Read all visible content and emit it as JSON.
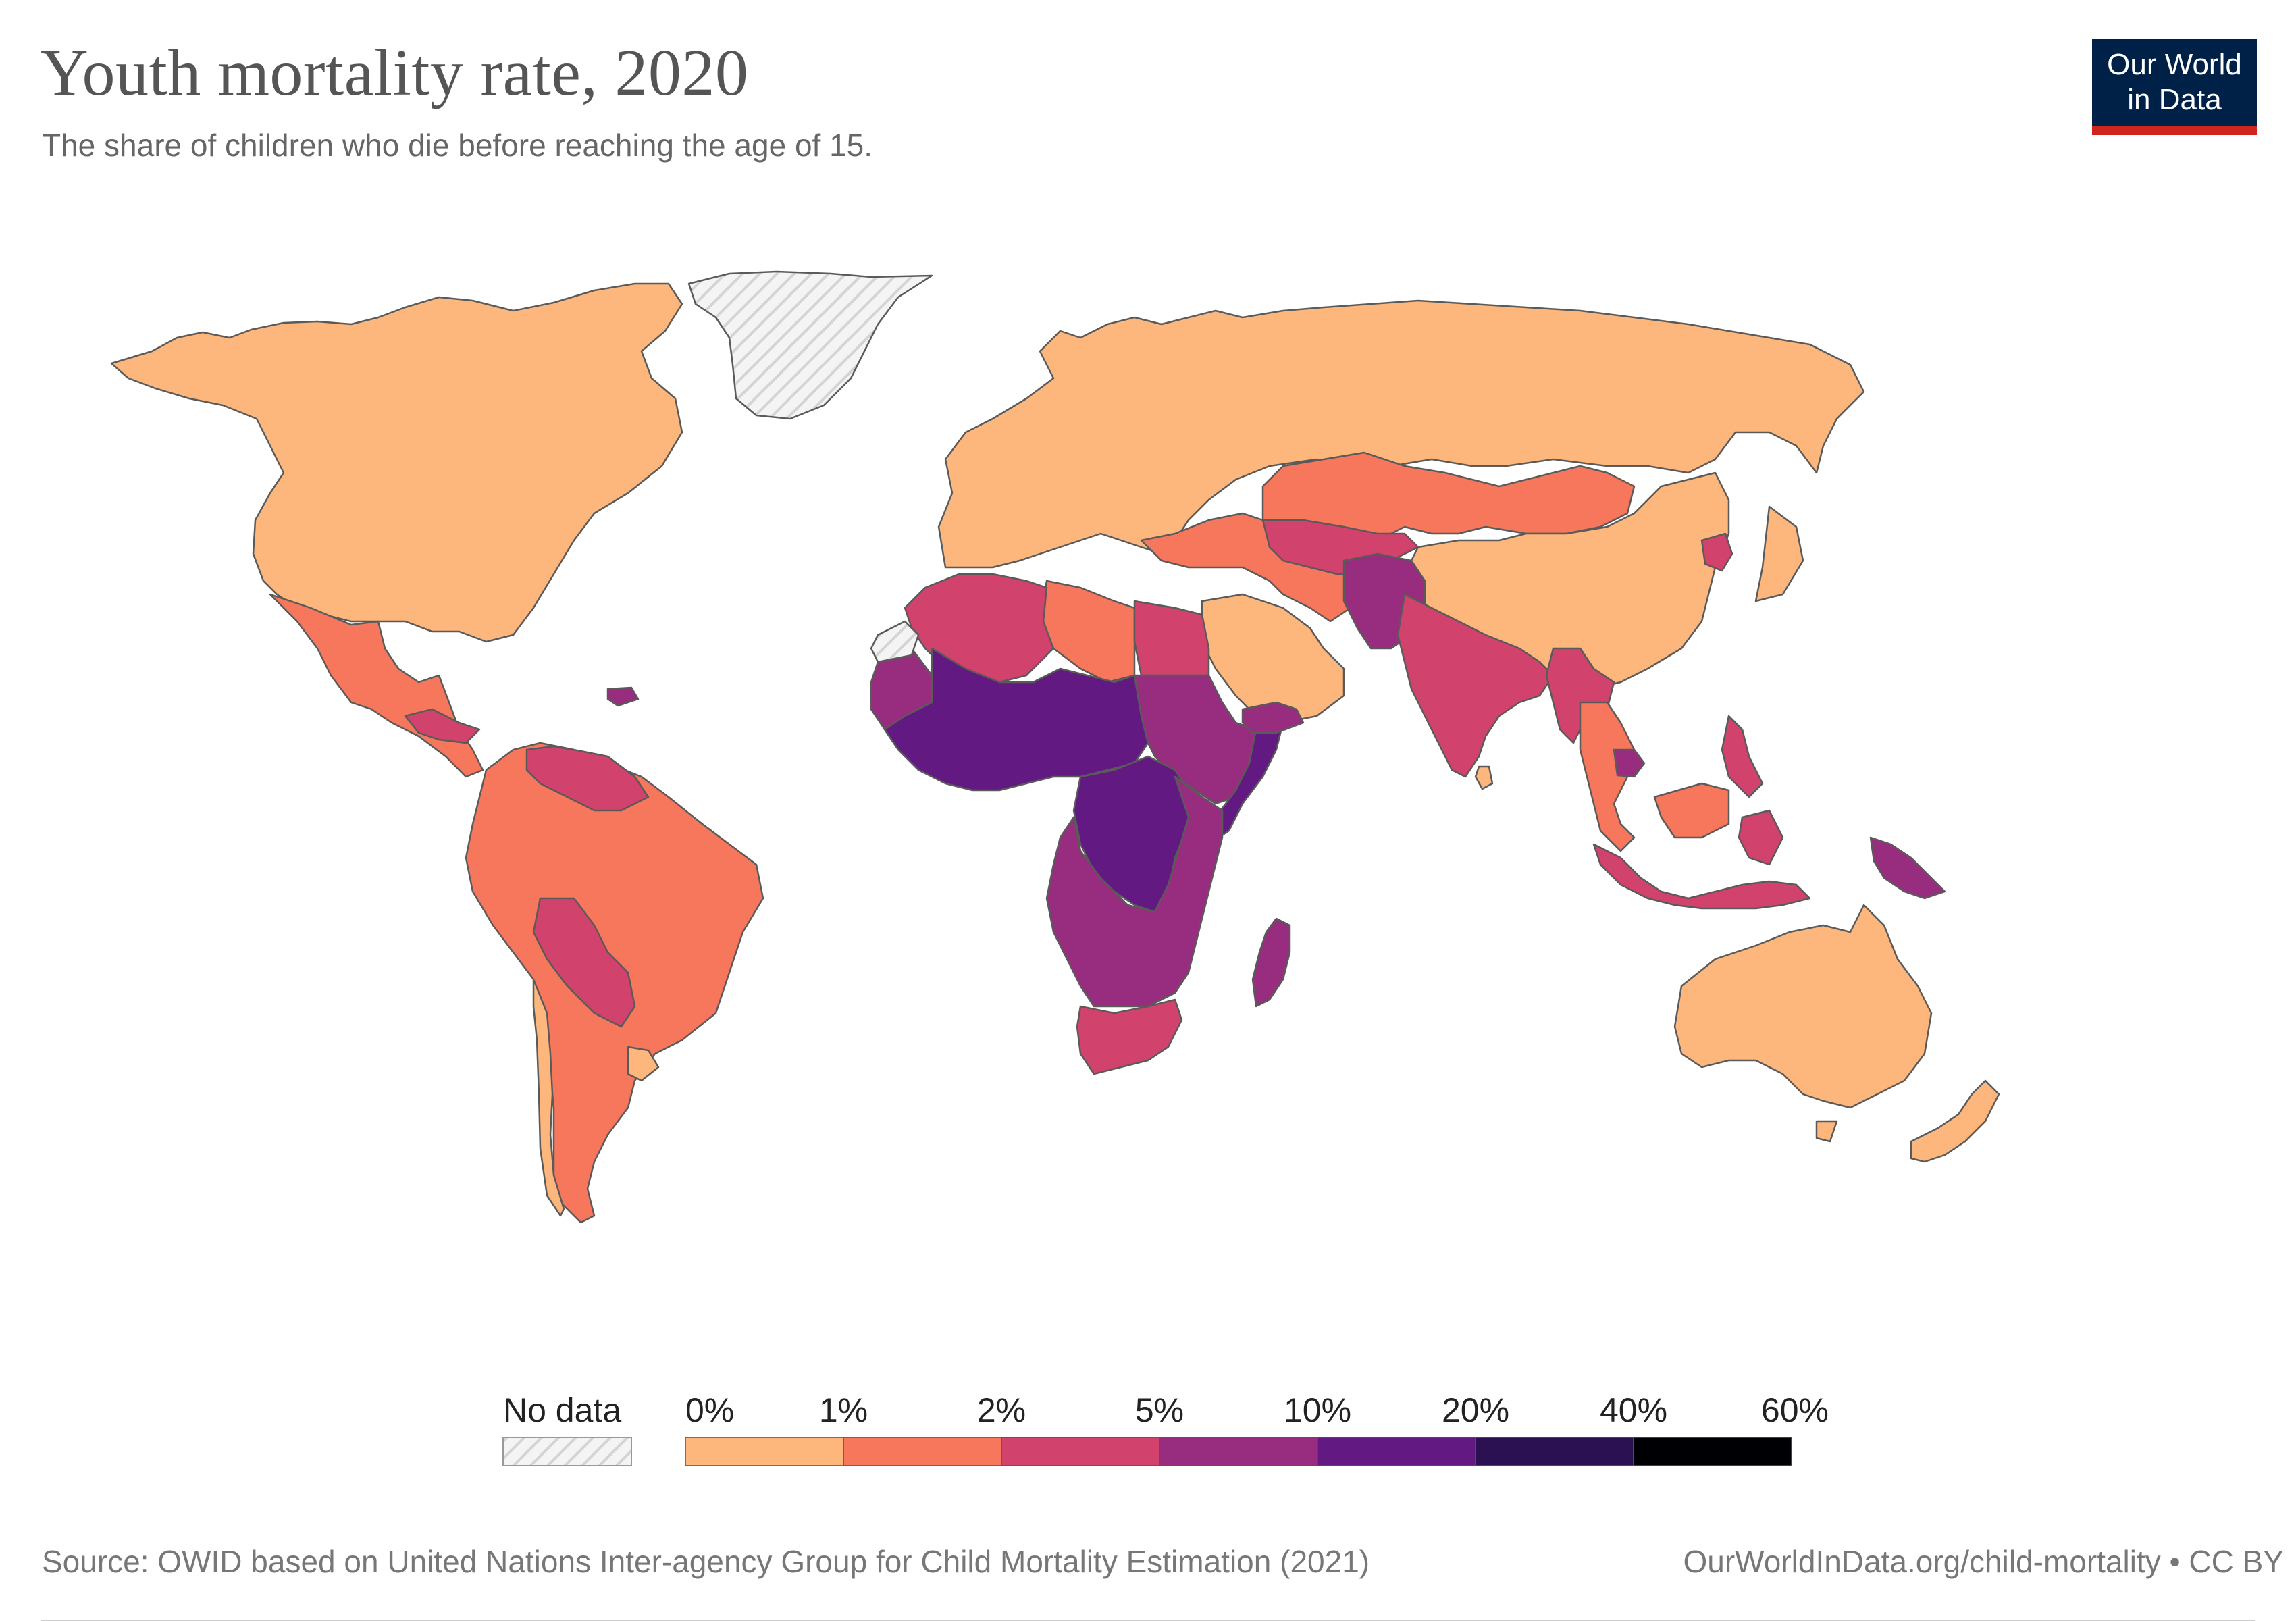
{
  "header": {
    "title": "Youth mortality rate, 2020",
    "subtitle": "The share of children who die before reaching the age of 15."
  },
  "logo": {
    "line1": "Our World",
    "line2": "in Data"
  },
  "legend": {
    "no_data_label": "No data",
    "bins": [
      {
        "label": "0%",
        "color": "#fdb67c"
      },
      {
        "label": "1%",
        "color": "#f6775b"
      },
      {
        "label": "2%",
        "color": "#d1426c"
      },
      {
        "label": "5%",
        "color": "#982d80"
      },
      {
        "label": "10%",
        "color": "#621a82"
      },
      {
        "label": "20%",
        "color": "#2b1052"
      },
      {
        "label": "40%",
        "color": "#000004"
      }
    ],
    "end_label": "60%"
  },
  "footer": {
    "source": "Source: OWID based on United Nations Inter-agency Group for Child Mortality Estimation (2021)",
    "link": "OurWorldInData.org/child-mortality • CC BY"
  },
  "map_data": {
    "colors": {
      "bin0": "#fdb67c",
      "bin1": "#f6775b",
      "bin2": "#d1426c",
      "bin3": "#982d80",
      "bin4": "#621a82",
      "no_data": "#f2f2f2",
      "border": "#5a5a5a"
    },
    "regions": [
      {
        "name": "North America",
        "bin": "bin0"
      },
      {
        "name": "Mexico & Central America",
        "bin": "bin1"
      },
      {
        "name": "Guatemala / Honduras",
        "bin": "bin2"
      },
      {
        "name": "Haiti",
        "bin": "bin3"
      },
      {
        "name": "Greenland",
        "bin": "no_data"
      },
      {
        "name": "Colombia / Ecuador / Peru / Brazil / Argentina",
        "bin": "bin1"
      },
      {
        "name": "Venezuela / Guyana",
        "bin": "bin2"
      },
      {
        "name": "Bolivia / Paraguay",
        "bin": "bin2"
      },
      {
        "name": "Chile / Uruguay",
        "bin": "bin0"
      },
      {
        "name": "Europe & Russia",
        "bin": "bin0"
      },
      {
        "name": "Turkey / Kazakhstan / Mongolia / Iran",
        "bin": "bin1"
      },
      {
        "name": "Central Asia",
        "bin": "bin2"
      },
      {
        "name": "Saudi Arabia & Gulf",
        "bin": "bin0"
      },
      {
        "name": "China / Japan / Korea",
        "bin": "bin0"
      },
      {
        "name": "North Korea",
        "bin": "bin2"
      },
      {
        "name": "Afghanistan / Pakistan",
        "bin": "bin3"
      },
      {
        "name": "India & South Asia",
        "bin": "bin2"
      },
      {
        "name": "Sri Lanka",
        "bin": "bin0"
      },
      {
        "name": "Myanmar / Laos",
        "bin": "bin2"
      },
      {
        "name": "Thailand / Vietnam / Malaysia",
        "bin": "bin1"
      },
      {
        "name": "Cambodia",
        "bin": "bin3"
      },
      {
        "name": "Philippines / Indonesia",
        "bin": "bin2"
      },
      {
        "name": "Papua New Guinea",
        "bin": "bin3"
      },
      {
        "name": "Australia / New Zealand",
        "bin": "bin0"
      },
      {
        "name": "Libya / Tunisia",
        "bin": "bin1"
      },
      {
        "name": "Morocco / Algeria / Egypt",
        "bin": "bin2"
      },
      {
        "name": "Mauritania / Sudan / Ethiopia",
        "bin": "bin3"
      },
      {
        "name": "Sahel & West Africa",
        "bin": "bin4"
      },
      {
        "name": "Central Africa (DRC / CAR)",
        "bin": "bin4"
      },
      {
        "name": "Somalia",
        "bin": "bin4"
      },
      {
        "name": "East & Southern Africa",
        "bin": "bin3"
      },
      {
        "name": "South Africa",
        "bin": "bin2"
      },
      {
        "name": "Madagascar",
        "bin": "bin3"
      },
      {
        "name": "Yemen",
        "bin": "bin3"
      },
      {
        "name": "Western Sahara",
        "bin": "no_data"
      }
    ]
  }
}
